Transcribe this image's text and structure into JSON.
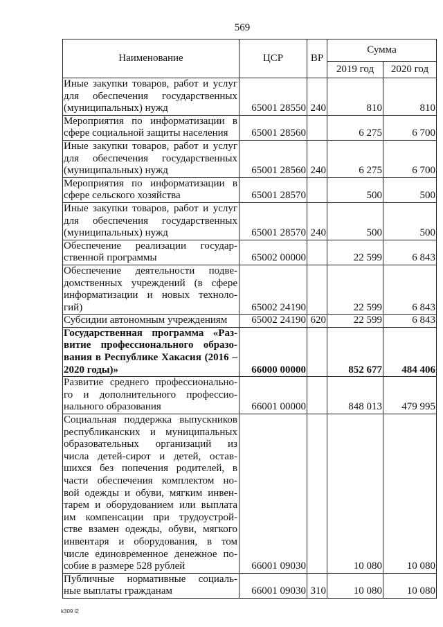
{
  "page_number": "569",
  "footer": "k309 l2",
  "headers": {
    "name": "Наименование",
    "csr": "ЦСР",
    "vr": "ВР",
    "sum": "Сумма",
    "y2019": "2019 год",
    "y2020": "2020 год"
  },
  "rows": [
    {
      "name": [
        "Иные закупки товаров, работ и услуг",
        "для обеспечения государственных",
        "(муниципальных) нужд"
      ],
      "csr": "65001 28550",
      "vr": "240",
      "y2019": "810",
      "y2020": "810",
      "bold": false
    },
    {
      "name": [
        "Мероприятия по информатизации в",
        "сфере социальной защиты населения"
      ],
      "csr": "65001 28560",
      "vr": "",
      "y2019": "6 275",
      "y2020": "6 700",
      "bold": false
    },
    {
      "name": [
        "Иные закупки товаров, работ и услуг",
        "для обеспечения государственных",
        "(муниципальных) нужд"
      ],
      "csr": "65001 28560",
      "vr": "240",
      "y2019": "6 275",
      "y2020": "6 700",
      "bold": false
    },
    {
      "name": [
        "Мероприятия по информатизации в",
        "сфере сельского хозяйства"
      ],
      "csr": "65001 28570",
      "vr": "",
      "y2019": "500",
      "y2020": "500",
      "bold": false
    },
    {
      "name": [
        "Иные закупки товаров, работ и услуг",
        "для обеспечения государственных",
        "(муниципальных) нужд"
      ],
      "csr": "65001 28570",
      "vr": "240",
      "y2019": "500",
      "y2020": "500",
      "bold": false
    },
    {
      "name": [
        "Обеспечение реализации государ-",
        "ственной программы"
      ],
      "csr": "65002 00000",
      "vr": "",
      "y2019": "22 599",
      "y2020": "6 843",
      "bold": false
    },
    {
      "name": [
        "Обеспечение деятельности подве-",
        "домственных учреждений (в сфере",
        "информатизации и новых техноло-",
        "гий)"
      ],
      "csr": "65002 24190",
      "vr": "",
      "y2019": "22 599",
      "y2020": "6 843",
      "bold": false
    },
    {
      "name": [
        "Субсидии автономным учреждениям"
      ],
      "csr": "65002 24190",
      "vr": "620",
      "y2019": "22 599",
      "y2020": "6 843",
      "bold": false
    },
    {
      "name": [
        "Государственная программа «Раз-",
        "витие профессионального образо-",
        "вания в Республике Хакасия (2016 –",
        "2020 годы)»"
      ],
      "csr": "66000 00000",
      "vr": "",
      "y2019": "852 677",
      "y2020": "484 406",
      "bold": true
    },
    {
      "name": [
        "Развитие среднего профессионально-",
        "го и дополнительного профессио-",
        "нального образования"
      ],
      "csr": "66001 00000",
      "vr": "",
      "y2019": "848 013",
      "y2020": "479 995",
      "bold": false
    },
    {
      "name": [
        "Социальная поддержка выпускников",
        "республиканских и муниципальных",
        "образовательных организаций из",
        "числа детей-сирот и детей, остав-",
        "шихся без попечения родителей, в",
        "части обеспечения комплектом но-",
        "вой одежды и обуви, мягким инвен-",
        "тарем и оборудованием или выплата",
        "им компенсации при трудоустрой-",
        "стве взамен одежды, обуви, мягкого",
        "инвентаря и оборудования, в том",
        "числе единовременное денежное по-",
        "собие в размере 528 рублей"
      ],
      "csr": "66001 09030",
      "vr": "",
      "y2019": "10 080",
      "y2020": "10 080",
      "bold": false
    },
    {
      "name": [
        "Публичные нормативные социаль-",
        "ные выплаты гражданам"
      ],
      "csr": "66001 09030",
      "vr": "310",
      "y2019": "10 080",
      "y2020": "10 080",
      "bold": false
    }
  ]
}
